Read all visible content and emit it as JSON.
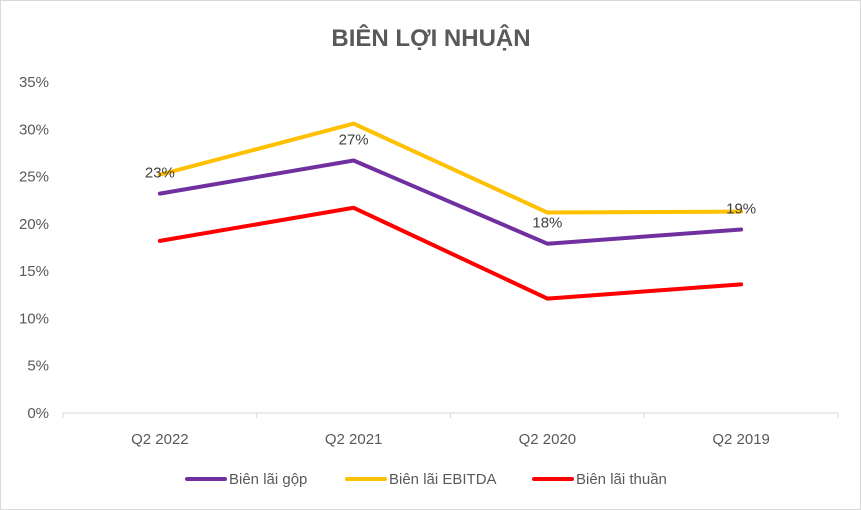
{
  "chart_data": {
    "type": "line",
    "title": "BIÊN LỢI NHUẬN",
    "xlabel": "",
    "ylabel": "",
    "categories": [
      "Q2 2022",
      "Q2 2021",
      "Q2 2020",
      "Q2 2019"
    ],
    "y_ticks": [
      "0%",
      "5%",
      "10%",
      "15%",
      "20%",
      "25%",
      "30%",
      "35%"
    ],
    "ylim": [
      0,
      35
    ],
    "grid": false,
    "legend_position": "bottom",
    "series": [
      {
        "name": "Biên lãi gộp",
        "color": "#7030A0",
        "values": [
          23.2,
          26.7,
          17.9,
          19.4
        ],
        "data_labels": [
          "23%",
          "27%",
          "18%",
          "19%"
        ]
      },
      {
        "name": "Biên lãi EBITDA",
        "color": "#FFC000",
        "values": [
          25.2,
          30.6,
          21.2,
          21.3
        ]
      },
      {
        "name": "Biên lãi thuần",
        "color": "#FF0000",
        "values": [
          18.2,
          21.7,
          12.1,
          13.6
        ]
      }
    ]
  }
}
